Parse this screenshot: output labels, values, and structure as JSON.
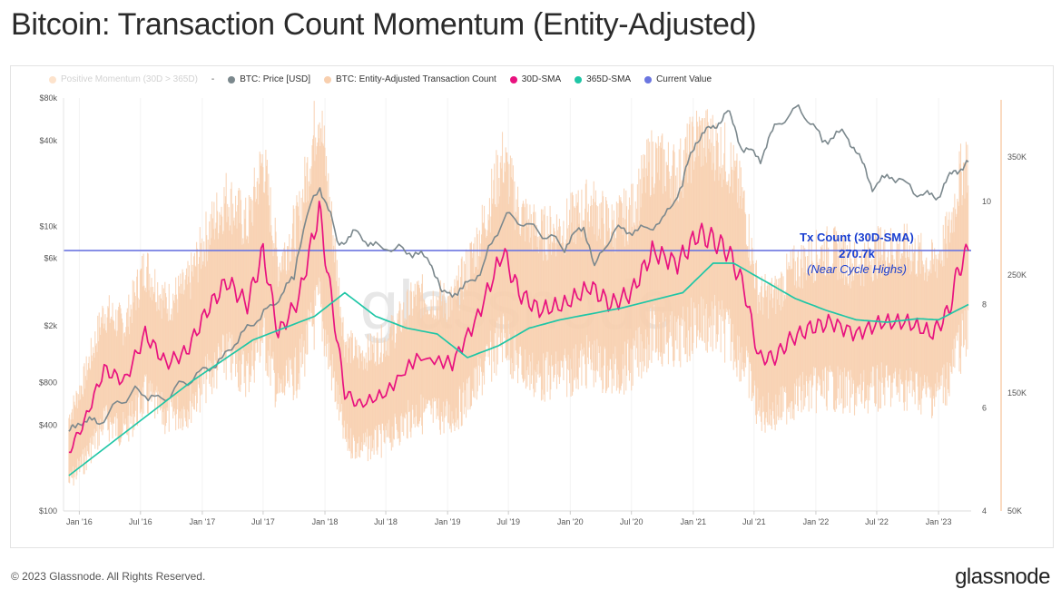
{
  "title": "Bitcoin: Transaction Count Momentum (Entity-Adjusted)",
  "footer": "© 2023 Glassnode. All Rights Reserved.",
  "brand": "glassnode",
  "watermark": "glassnode",
  "legend": {
    "items": [
      {
        "label": "Positive Momentum (30D > 365D)",
        "color": "#fde3cc",
        "faded": true
      },
      {
        "label": "BTC: Price [USD]",
        "color": "#7b888d"
      },
      {
        "label": "BTC: Entity-Adjusted Transaction Count",
        "color": "#f8cfae"
      },
      {
        "label": "30D-SMA",
        "color": "#e8127f"
      },
      {
        "label": "365D-SMA",
        "color": "#1fc6a6"
      },
      {
        "label": "Current Value",
        "color": "#6b76e0"
      }
    ],
    "separator": "-"
  },
  "annotation": {
    "line1": "Tx Count (30D-SMA)",
    "line2": "270.7k",
    "line3": "(Near Cycle Highs)",
    "color": "#1a3fd1"
  },
  "chart_data": {
    "type": "line",
    "x_ticks": [
      "Jan '16",
      "Jul '16",
      "Jan '17",
      "Jul '17",
      "Jan '18",
      "Jul '18",
      "Jan '19",
      "Jul '19",
      "Jan '20",
      "Jul '20",
      "Jan '21",
      "Jul '21",
      "Jan '22",
      "Jul '22",
      "Jan '23"
    ],
    "y_left": {
      "label": "",
      "scale": "log",
      "ticks": [
        "$80k",
        "$40k",
        "$10k",
        "$6k",
        "$2k",
        "$800",
        "$400",
        "$100"
      ],
      "tick_values": [
        80000,
        40000,
        10000,
        6000,
        2000,
        800,
        400,
        100
      ],
      "range": [
        100,
        80000
      ]
    },
    "y_right_inner": {
      "ticks": [
        "10",
        "8",
        "6",
        "4"
      ],
      "tick_values": [
        10,
        8,
        6,
        4
      ],
      "range": [
        4,
        12
      ]
    },
    "y_right_outer": {
      "ticks": [
        "350K",
        "250K",
        "150K",
        "50K"
      ],
      "tick_values": [
        350000,
        250000,
        150000,
        50000
      ],
      "range": [
        50000,
        400000
      ]
    },
    "current_value": 270700,
    "series": [
      {
        "name": "BTC: Price [USD]",
        "color": "#7b888d",
        "x": [
          "2015-12-01",
          "2016-01-01",
          "2016-03-01",
          "2016-06-15",
          "2016-09-01",
          "2016-12-15",
          "2017-03-01",
          "2017-05-15",
          "2017-08-01",
          "2017-10-01",
          "2017-12-17",
          "2018-02-06",
          "2018-04-01",
          "2018-06-01",
          "2018-09-01",
          "2018-11-10",
          "2018-12-15",
          "2019-02-15",
          "2019-04-15",
          "2019-06-26",
          "2019-09-01",
          "2019-12-15",
          "2020-02-10",
          "2020-03-13",
          "2020-05-15",
          "2020-07-20",
          "2020-10-01",
          "2020-11-30",
          "2021-01-08",
          "2021-03-01",
          "2021-04-14",
          "2021-05-25",
          "2021-07-20",
          "2021-09-06",
          "2021-11-10",
          "2022-01-20",
          "2022-03-28",
          "2022-05-10",
          "2022-06-18",
          "2022-08-15",
          "2022-11-09",
          "2022-12-31",
          "2023-02-15",
          "2023-03-31"
        ],
        "values": [
          350,
          430,
          420,
          700,
          600,
          900,
          1150,
          1900,
          2800,
          4300,
          19000,
          7500,
          9000,
          7200,
          6800,
          5800,
          3300,
          3600,
          5000,
          12000,
          10000,
          7200,
          10000,
          5000,
          9500,
          9300,
          10700,
          19000,
          40000,
          50000,
          63000,
          36000,
          30000,
          51000,
          68000,
          40000,
          46000,
          30000,
          19000,
          23000,
          16500,
          16500,
          24000,
          28500
        ]
      },
      {
        "name": "30D-SMA",
        "color": "#e8127f",
        "x": [
          "2015-12-01",
          "2016-01-15",
          "2016-03-15",
          "2016-05-15",
          "2016-07-15",
          "2016-09-15",
          "2016-11-15",
          "2017-01-15",
          "2017-03-15",
          "2017-05-15",
          "2017-07-01",
          "2017-08-15",
          "2017-10-15",
          "2017-12-15",
          "2018-01-20",
          "2018-03-01",
          "2018-04-15",
          "2018-07-01",
          "2018-10-01",
          "2019-01-15",
          "2019-04-01",
          "2019-06-15",
          "2019-08-01",
          "2019-10-01",
          "2019-12-15",
          "2020-03-01",
          "2020-05-01",
          "2020-07-01",
          "2020-09-01",
          "2020-11-15",
          "2021-01-15",
          "2021-03-01",
          "2021-04-15",
          "2021-06-01",
          "2021-07-15",
          "2021-09-01",
          "2021-10-15",
          "2021-12-15",
          "2022-02-15",
          "2022-05-01",
          "2022-07-15",
          "2022-10-01",
          "2022-12-15",
          "2023-02-01",
          "2023-03-01",
          "2023-03-31"
        ],
        "values": [
          100000,
          125000,
          170000,
          160000,
          200000,
          175000,
          185000,
          220000,
          245000,
          225000,
          270000,
          200000,
          230000,
          305000,
          230000,
          150000,
          140000,
          150000,
          180000,
          175000,
          215000,
          270000,
          235000,
          220000,
          225000,
          240000,
          225000,
          235000,
          270000,
          260000,
          285000,
          280000,
          270000,
          240000,
          180000,
          180000,
          195000,
          205000,
          210000,
          200000,
          210000,
          210000,
          200000,
          220000,
          255000,
          270700
        ]
      },
      {
        "name": "365D-SMA",
        "color": "#1fc6a6",
        "x": [
          "2015-12-01",
          "2016-06-01",
          "2016-12-01",
          "2017-06-01",
          "2017-12-01",
          "2018-03-01",
          "2018-06-01",
          "2018-09-01",
          "2018-12-01",
          "2019-03-01",
          "2019-06-01",
          "2019-09-01",
          "2019-12-01",
          "2020-06-01",
          "2020-12-01",
          "2021-03-01",
          "2021-05-01",
          "2021-08-01",
          "2021-11-01",
          "2022-02-01",
          "2022-05-01",
          "2022-08-01",
          "2022-11-01",
          "2023-01-01",
          "2023-03-31"
        ],
        "values": [
          80000,
          120000,
          160000,
          195000,
          215000,
          235000,
          215000,
          205000,
          200000,
          180000,
          190000,
          205000,
          212000,
          222000,
          235000,
          260000,
          260000,
          245000,
          230000,
          220000,
          212000,
          210000,
          213000,
          212000,
          225000
        ]
      }
    ]
  }
}
